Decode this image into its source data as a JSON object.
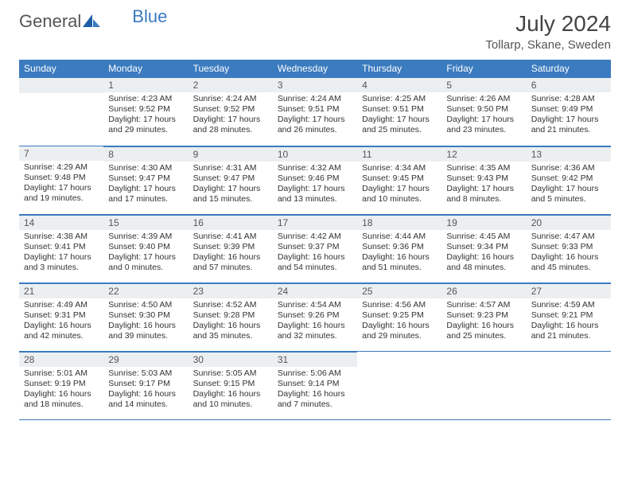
{
  "brand": {
    "part1": "General",
    "part2": "Blue"
  },
  "title": "July 2024",
  "location": "Tollarp, Skane, Sweden",
  "colors": {
    "header_bg": "#3b7bbf",
    "header_text": "#ffffff",
    "daynum_bg": "#eceff1",
    "border": "#3b7bbf",
    "text": "#333333",
    "title_text": "#444444"
  },
  "weekdays": [
    "Sunday",
    "Monday",
    "Tuesday",
    "Wednesday",
    "Thursday",
    "Friday",
    "Saturday"
  ],
  "cells": [
    {
      "n": "",
      "sr": "",
      "ss": "",
      "dl": ""
    },
    {
      "n": "1",
      "sr": "4:23 AM",
      "ss": "9:52 PM",
      "dl": "17 hours and 29 minutes."
    },
    {
      "n": "2",
      "sr": "4:24 AM",
      "ss": "9:52 PM",
      "dl": "17 hours and 28 minutes."
    },
    {
      "n": "3",
      "sr": "4:24 AM",
      "ss": "9:51 PM",
      "dl": "17 hours and 26 minutes."
    },
    {
      "n": "4",
      "sr": "4:25 AM",
      "ss": "9:51 PM",
      "dl": "17 hours and 25 minutes."
    },
    {
      "n": "5",
      "sr": "4:26 AM",
      "ss": "9:50 PM",
      "dl": "17 hours and 23 minutes."
    },
    {
      "n": "6",
      "sr": "4:28 AM",
      "ss": "9:49 PM",
      "dl": "17 hours and 21 minutes."
    },
    {
      "n": "7",
      "sr": "4:29 AM",
      "ss": "9:48 PM",
      "dl": "17 hours and 19 minutes."
    },
    {
      "n": "8",
      "sr": "4:30 AM",
      "ss": "9:47 PM",
      "dl": "17 hours and 17 minutes."
    },
    {
      "n": "9",
      "sr": "4:31 AM",
      "ss": "9:47 PM",
      "dl": "17 hours and 15 minutes."
    },
    {
      "n": "10",
      "sr": "4:32 AM",
      "ss": "9:46 PM",
      "dl": "17 hours and 13 minutes."
    },
    {
      "n": "11",
      "sr": "4:34 AM",
      "ss": "9:45 PM",
      "dl": "17 hours and 10 minutes."
    },
    {
      "n": "12",
      "sr": "4:35 AM",
      "ss": "9:43 PM",
      "dl": "17 hours and 8 minutes."
    },
    {
      "n": "13",
      "sr": "4:36 AM",
      "ss": "9:42 PM",
      "dl": "17 hours and 5 minutes."
    },
    {
      "n": "14",
      "sr": "4:38 AM",
      "ss": "9:41 PM",
      "dl": "17 hours and 3 minutes."
    },
    {
      "n": "15",
      "sr": "4:39 AM",
      "ss": "9:40 PM",
      "dl": "17 hours and 0 minutes."
    },
    {
      "n": "16",
      "sr": "4:41 AM",
      "ss": "9:39 PM",
      "dl": "16 hours and 57 minutes."
    },
    {
      "n": "17",
      "sr": "4:42 AM",
      "ss": "9:37 PM",
      "dl": "16 hours and 54 minutes."
    },
    {
      "n": "18",
      "sr": "4:44 AM",
      "ss": "9:36 PM",
      "dl": "16 hours and 51 minutes."
    },
    {
      "n": "19",
      "sr": "4:45 AM",
      "ss": "9:34 PM",
      "dl": "16 hours and 48 minutes."
    },
    {
      "n": "20",
      "sr": "4:47 AM",
      "ss": "9:33 PM",
      "dl": "16 hours and 45 minutes."
    },
    {
      "n": "21",
      "sr": "4:49 AM",
      "ss": "9:31 PM",
      "dl": "16 hours and 42 minutes."
    },
    {
      "n": "22",
      "sr": "4:50 AM",
      "ss": "9:30 PM",
      "dl": "16 hours and 39 minutes."
    },
    {
      "n": "23",
      "sr": "4:52 AM",
      "ss": "9:28 PM",
      "dl": "16 hours and 35 minutes."
    },
    {
      "n": "24",
      "sr": "4:54 AM",
      "ss": "9:26 PM",
      "dl": "16 hours and 32 minutes."
    },
    {
      "n": "25",
      "sr": "4:56 AM",
      "ss": "9:25 PM",
      "dl": "16 hours and 29 minutes."
    },
    {
      "n": "26",
      "sr": "4:57 AM",
      "ss": "9:23 PM",
      "dl": "16 hours and 25 minutes."
    },
    {
      "n": "27",
      "sr": "4:59 AM",
      "ss": "9:21 PM",
      "dl": "16 hours and 21 minutes."
    },
    {
      "n": "28",
      "sr": "5:01 AM",
      "ss": "9:19 PM",
      "dl": "16 hours and 18 minutes."
    },
    {
      "n": "29",
      "sr": "5:03 AM",
      "ss": "9:17 PM",
      "dl": "16 hours and 14 minutes."
    },
    {
      "n": "30",
      "sr": "5:05 AM",
      "ss": "9:15 PM",
      "dl": "16 hours and 10 minutes."
    },
    {
      "n": "31",
      "sr": "5:06 AM",
      "ss": "9:14 PM",
      "dl": "16 hours and 7 minutes."
    },
    {
      "n": "",
      "sr": "",
      "ss": "",
      "dl": ""
    },
    {
      "n": "",
      "sr": "",
      "ss": "",
      "dl": ""
    },
    {
      "n": "",
      "sr": "",
      "ss": "",
      "dl": ""
    }
  ],
  "labels": {
    "sunrise": "Sunrise:",
    "sunset": "Sunset:",
    "daylight": "Daylight:"
  }
}
